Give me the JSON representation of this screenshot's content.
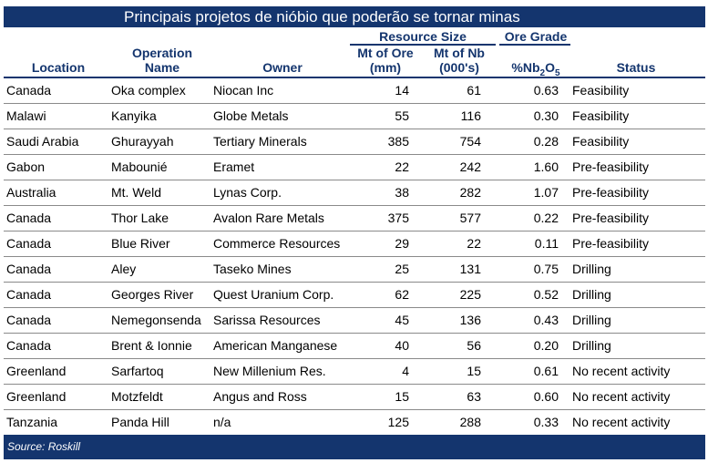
{
  "title": "Principais projetos de nióbio que poderão se tornar minas",
  "headers": {
    "location": "Location",
    "operation_line1": "Operation",
    "operation_line2": "Name",
    "owner": "Owner",
    "resource_size": "Resource Size",
    "ore_line1": "Mt of Ore",
    "ore_line2": "(mm)",
    "nb_line1": "Mt of Nb",
    "nb_line2": "(000's)",
    "ore_grade": "Ore Grade",
    "grade_prefix": "%Nb",
    "grade_sub1": "2",
    "grade_o": "O",
    "grade_sub2": "5",
    "status": "Status"
  },
  "rows": [
    {
      "location": "Canada",
      "operation": "Oka complex",
      "owner": "Niocan Inc",
      "ore": "14",
      "nb": "61",
      "grade": "0.63",
      "status": "Feasibility"
    },
    {
      "location": "Malawi",
      "operation": "Kanyika",
      "owner": "Globe Metals",
      "ore": "55",
      "nb": "116",
      "grade": "0.30",
      "status": "Feasibility"
    },
    {
      "location": "Saudi Arabia",
      "operation": "Ghurayyah",
      "owner": "Tertiary Minerals",
      "ore": "385",
      "nb": "754",
      "grade": "0.28",
      "status": "Feasibility"
    },
    {
      "location": "Gabon",
      "operation": "Mabounié",
      "owner": "Eramet",
      "ore": "22",
      "nb": "242",
      "grade": "1.60",
      "status": "Pre-feasibility"
    },
    {
      "location": "Australia",
      "operation": "Mt. Weld",
      "owner": "Lynas Corp.",
      "ore": "38",
      "nb": "282",
      "grade": "1.07",
      "status": "Pre-feasibility"
    },
    {
      "location": "Canada",
      "operation": "Thor Lake",
      "owner": "Avalon Rare Metals",
      "ore": "375",
      "nb": "577",
      "grade": "0.22",
      "status": "Pre-feasibility"
    },
    {
      "location": "Canada",
      "operation": "Blue River",
      "owner": "Commerce Resources",
      "ore": "29",
      "nb": "22",
      "grade": "0.11",
      "status": "Pre-feasibility"
    },
    {
      "location": "Canada",
      "operation": "Aley",
      "owner": "Taseko Mines",
      "ore": "25",
      "nb": "131",
      "grade": "0.75",
      "status": "Drilling"
    },
    {
      "location": "Canada",
      "operation": "Georges River",
      "owner": "Quest Uranium Corp.",
      "ore": "62",
      "nb": "225",
      "grade": "0.52",
      "status": "Drilling"
    },
    {
      "location": "Canada",
      "operation": "Nemegonsenda",
      "owner": "Sarissa Resources",
      "ore": "45",
      "nb": "136",
      "grade": "0.43",
      "status": "Drilling"
    },
    {
      "location": "Canada",
      "operation": "Brent & Ionnie",
      "owner": "American Manganese",
      "ore": "40",
      "nb": "56",
      "grade": "0.20",
      "status": "Drilling"
    },
    {
      "location": "Greenland",
      "operation": "Sarfartoq",
      "owner": "New Millenium Res.",
      "ore": "4",
      "nb": "15",
      "grade": "0.61",
      "status": "No recent activity"
    },
    {
      "location": "Greenland",
      "operation": "Motzfeldt",
      "owner": "Angus and Ross",
      "ore": "15",
      "nb": "63",
      "grade": "0.60",
      "status": "No recent activity"
    },
    {
      "location": "Tanzania",
      "operation": "Panda Hill",
      "owner": "n/a",
      "ore": "125",
      "nb": "288",
      "grade": "0.33",
      "status": "No recent activity"
    }
  ],
  "source": "Source: Roskill",
  "colors": {
    "navy": "#14356e",
    "divider": "#8a8a8a"
  }
}
